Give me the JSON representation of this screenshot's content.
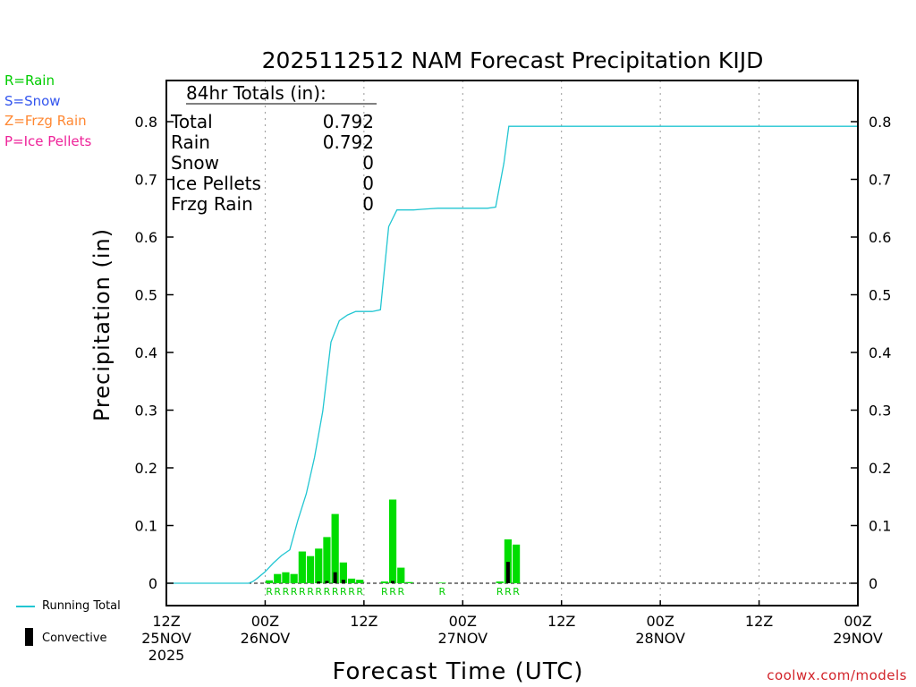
{
  "chart_data": {
    "type": "bar",
    "title": "2025112512 NAM Forecast Precipitation KIJD",
    "xlabel": "Forecast Time (UTC)",
    "ylabel": "Precipitation (in)",
    "ylim": [
      0,
      0.87
    ],
    "y_ticks": [
      "0",
      "0.1",
      "0.2",
      "0.3",
      "0.4",
      "0.5",
      "0.6",
      "0.7",
      "0.8"
    ],
    "xlim_hours": [
      0,
      84
    ],
    "x_ticks": [
      {
        "hour": 0,
        "time": "12Z",
        "date": "25NOV",
        "year": "2025"
      },
      {
        "hour": 12,
        "time": "00Z",
        "date": "26NOV",
        "year": ""
      },
      {
        "hour": 24,
        "time": "12Z",
        "date": "",
        "year": ""
      },
      {
        "hour": 36,
        "time": "00Z",
        "date": "27NOV",
        "year": ""
      },
      {
        "hour": 48,
        "time": "12Z",
        "date": "",
        "year": ""
      },
      {
        "hour": 60,
        "time": "00Z",
        "date": "28NOV",
        "year": ""
      },
      {
        "hour": 72,
        "time": "12Z",
        "date": "",
        "year": ""
      },
      {
        "hour": 84,
        "time": "00Z",
        "date": "29NOV",
        "year": ""
      }
    ],
    "grid_hours": [
      12,
      24,
      36,
      48,
      60,
      72
    ],
    "series": [
      {
        "name": "Hourly Rain",
        "type": "bar",
        "color": "#00dd00",
        "bars": [
          {
            "hour": 12,
            "value": 0.005
          },
          {
            "hour": 13,
            "value": 0.016
          },
          {
            "hour": 14,
            "value": 0.019
          },
          {
            "hour": 15,
            "value": 0.016
          },
          {
            "hour": 16,
            "value": 0.055
          },
          {
            "hour": 17,
            "value": 0.047
          },
          {
            "hour": 18,
            "value": 0.06
          },
          {
            "hour": 19,
            "value": 0.08
          },
          {
            "hour": 20,
            "value": 0.12
          },
          {
            "hour": 21,
            "value": 0.036
          },
          {
            "hour": 22,
            "value": 0.008
          },
          {
            "hour": 23,
            "value": 0.006
          },
          {
            "hour": 26,
            "value": 0.003
          },
          {
            "hour": 27,
            "value": 0.145
          },
          {
            "hour": 28,
            "value": 0.027
          },
          {
            "hour": 29,
            "value": 0.002
          },
          {
            "hour": 33,
            "value": 0.001
          },
          {
            "hour": 40,
            "value": 0.003
          },
          {
            "hour": 41,
            "value": 0.076
          },
          {
            "hour": 42,
            "value": 0.067
          }
        ]
      },
      {
        "name": "Convective",
        "type": "bar",
        "color": "#000000",
        "bars": [
          {
            "hour": 18,
            "value": 0.003
          },
          {
            "hour": 19,
            "value": 0.004
          },
          {
            "hour": 20,
            "value": 0.019
          },
          {
            "hour": 21,
            "value": 0.006
          },
          {
            "hour": 27,
            "value": 0.004
          },
          {
            "hour": 41,
            "value": 0.037
          }
        ]
      },
      {
        "name": "Running Total",
        "type": "line",
        "color": "#22c6d2",
        "points": [
          [
            0,
            0
          ],
          [
            10,
            0
          ],
          [
            10.5,
            0.003
          ],
          [
            11,
            0.008
          ],
          [
            12,
            0.02
          ],
          [
            13,
            0.035
          ],
          [
            14,
            0.048
          ],
          [
            15,
            0.058
          ],
          [
            16,
            0.11
          ],
          [
            17,
            0.155
          ],
          [
            18,
            0.218
          ],
          [
            19,
            0.298
          ],
          [
            20,
            0.418
          ],
          [
            21,
            0.455
          ],
          [
            22,
            0.465
          ],
          [
            23,
            0.471
          ],
          [
            24,
            0.471
          ],
          [
            25,
            0.471
          ],
          [
            26,
            0.474
          ],
          [
            27,
            0.618
          ],
          [
            28,
            0.647
          ],
          [
            29,
            0.647
          ],
          [
            30,
            0.647
          ],
          [
            31,
            0.648
          ],
          [
            32,
            0.649
          ],
          [
            33,
            0.65
          ],
          [
            34,
            0.65
          ],
          [
            35,
            0.65
          ],
          [
            36,
            0.65
          ],
          [
            37,
            0.65
          ],
          [
            38,
            0.65
          ],
          [
            39,
            0.65
          ],
          [
            40,
            0.652
          ],
          [
            41,
            0.728
          ],
          [
            41.6,
            0.792
          ],
          [
            84,
            0.792
          ]
        ]
      }
    ],
    "ptype_labels": [
      {
        "hour": 12,
        "text": "R"
      },
      {
        "hour": 13,
        "text": "R"
      },
      {
        "hour": 14,
        "text": "R"
      },
      {
        "hour": 15,
        "text": "R"
      },
      {
        "hour": 16,
        "text": "R"
      },
      {
        "hour": 17,
        "text": "R"
      },
      {
        "hour": 18,
        "text": "R"
      },
      {
        "hour": 19,
        "text": "R"
      },
      {
        "hour": 20,
        "text": "R"
      },
      {
        "hour": 21,
        "text": "R"
      },
      {
        "hour": 22,
        "text": "R"
      },
      {
        "hour": 23,
        "text": "R"
      },
      {
        "hour": 26,
        "text": "R"
      },
      {
        "hour": 27,
        "text": "R"
      },
      {
        "hour": 28,
        "text": "R"
      },
      {
        "hour": 33,
        "text": "R"
      },
      {
        "hour": 40,
        "text": "R"
      },
      {
        "hour": 41,
        "text": "R"
      },
      {
        "hour": 42,
        "text": "R"
      }
    ],
    "totals_box": {
      "heading": "84hr Totals (in):",
      "rows": [
        {
          "label": "Total",
          "value": "0.792"
        },
        {
          "label": "Rain",
          "value": "0.792"
        },
        {
          "label": "Snow",
          "value": "0"
        },
        {
          "label": "Ice Pellets",
          "value": "0"
        },
        {
          "label": "Frzg Rain",
          "value": "0"
        }
      ]
    }
  },
  "ptype_legend": [
    {
      "text": "R=Rain",
      "color": "#00cc00"
    },
    {
      "text": "S=Snow",
      "color": "#3355ee"
    },
    {
      "text": "Z=Frzg Rain",
      "color": "#ff8833"
    },
    {
      "text": "P=Ice Pellets",
      "color": "#ee2299"
    }
  ],
  "bottom_legend": {
    "running_total": "Running Total",
    "convective": "Convective"
  },
  "credit": "coolwx.com/models"
}
